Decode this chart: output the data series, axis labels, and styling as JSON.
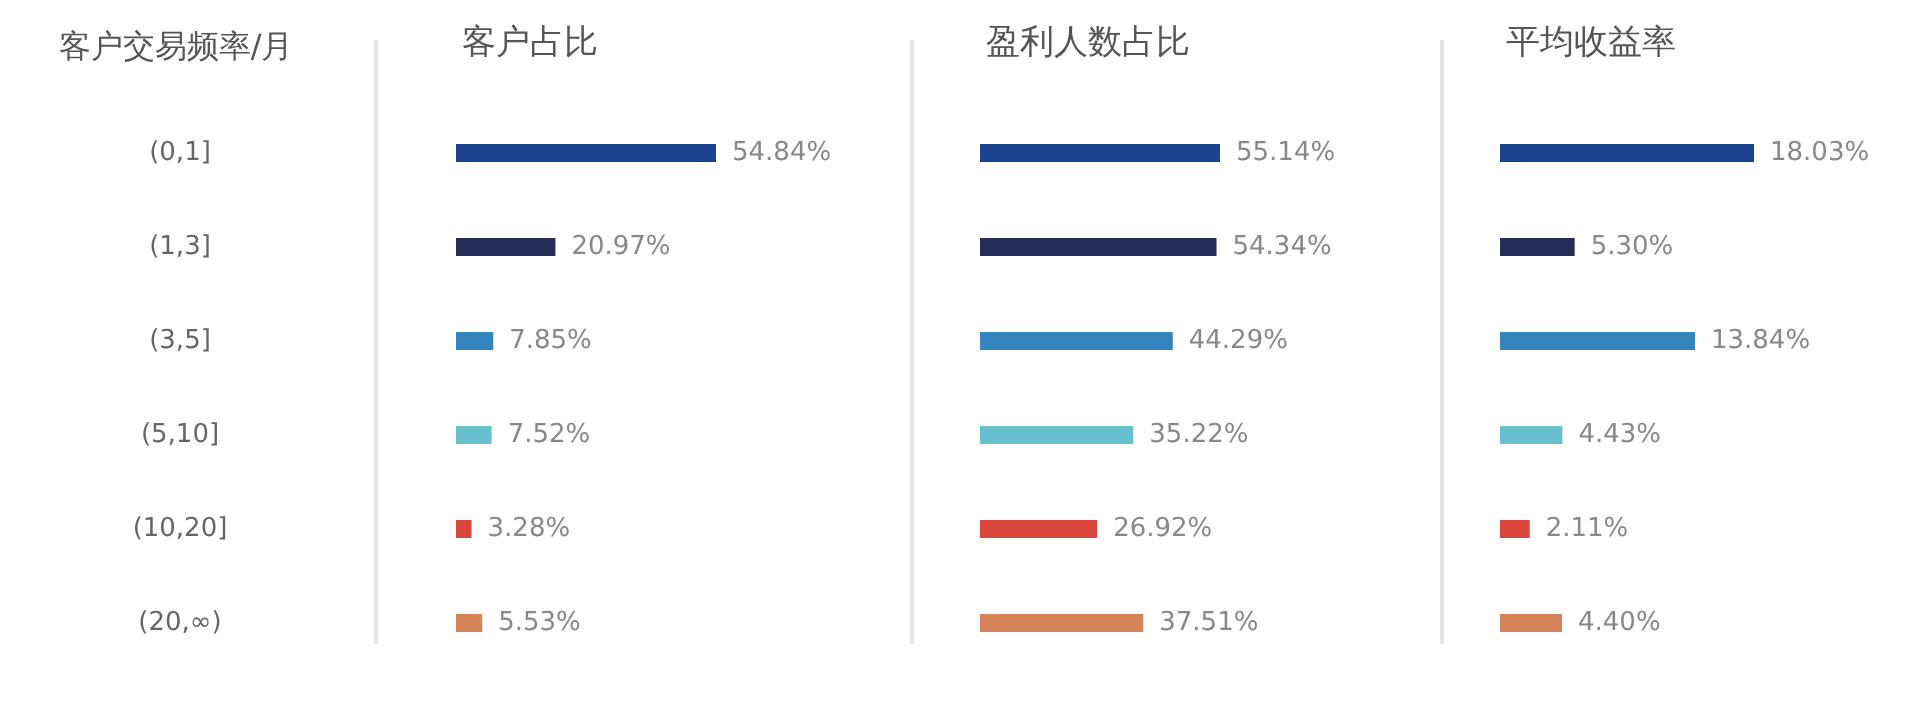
{
  "chart_data": [
    {
      "type": "bar",
      "orientation": "horizontal",
      "title": "客户占比",
      "ylabel": "客户交易频率/月",
      "tick_labels": "y",
      "categories": [
        "(0,1]",
        "(1,3]",
        "(3,5]",
        "(5,10]",
        "(10,20]",
        "(20,∞)"
      ],
      "values": [
        54.84,
        20.97,
        7.85,
        7.52,
        3.28,
        5.53
      ],
      "value_labels": [
        "54.84%",
        "20.97%",
        "7.85%",
        "7.52%",
        "3.28%",
        "5.53%"
      ],
      "colors": [
        "#1d428f",
        "#262b57",
        "#3584bd",
        "#68bfcd",
        "#d9473c",
        "#d6825a"
      ]
    },
    {
      "type": "bar",
      "orientation": "horizontal",
      "title": "盈利人数占比",
      "tick_labels": false,
      "categories": [
        null,
        null,
        null,
        null,
        null,
        null
      ],
      "values": [
        55.14,
        54.34,
        44.29,
        35.22,
        26.92,
        37.51
      ],
      "value_labels": [
        "55.14%",
        "54.34%",
        "44.29%",
        "35.22%",
        "26.92%",
        "37.51%"
      ],
      "colors": [
        "#1d428f",
        "#262b57",
        "#3584bd",
        "#68bfcd",
        "#d9473c",
        "#d6825a"
      ]
    },
    {
      "type": "bar",
      "orientation": "horizontal",
      "title": "平均收益率",
      "tick_labels": false,
      "categories": [
        null,
        null,
        null,
        null,
        null,
        null
      ],
      "values": [
        18.03,
        5.3,
        13.84,
        4.43,
        2.11,
        4.4
      ],
      "value_labels": [
        "18.03%",
        "5.30%",
        "13.84%",
        "4.43%",
        "2.11%",
        "4.40%"
      ],
      "colors": [
        "#1d428f",
        "#262b57",
        "#3584bd",
        "#68bfcd",
        "#d9473c",
        "#d6825a"
      ]
    }
  ]
}
